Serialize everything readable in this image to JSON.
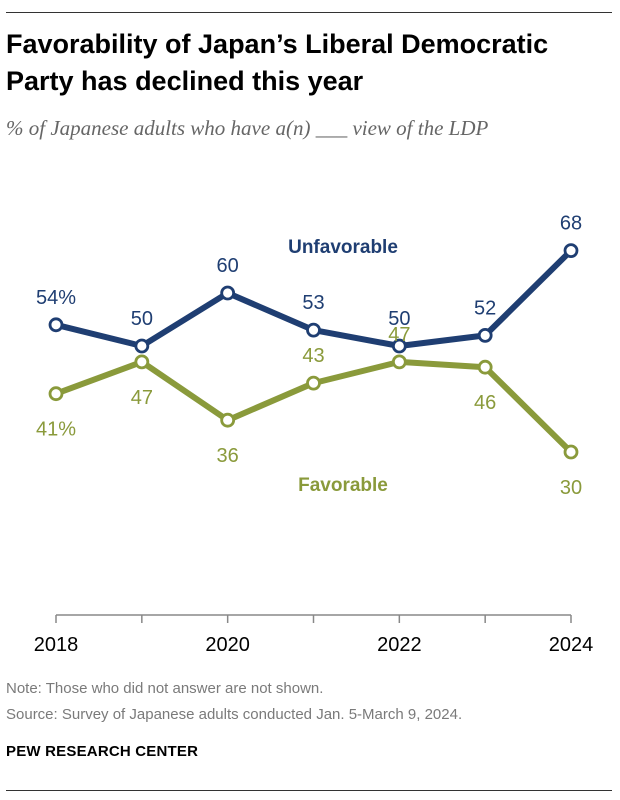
{
  "title": "Favorability of Japan’s Liberal Democratic Party has declined this year",
  "subtitle": "% of Japanese adults who have a(n) ___ view of the LDP",
  "chart_data": {
    "type": "line",
    "x": [
      2018,
      2019,
      2020,
      2021,
      2022,
      2023,
      2024
    ],
    "x_tick_labels": [
      "2018",
      "2020",
      "2022",
      "2024"
    ],
    "ylim": [
      0,
      80
    ],
    "grid": false,
    "series": [
      {
        "name": "Unfavorable",
        "color": "#1f3e72",
        "values": [
          54,
          50,
          60,
          53,
          50,
          52,
          68
        ],
        "labels": [
          "54%",
          "50",
          "60",
          "53",
          "50",
          "52",
          "68"
        ]
      },
      {
        "name": "Favorable",
        "color": "#8a9a3b",
        "values": [
          41,
          47,
          36,
          43,
          47,
          46,
          30
        ],
        "labels": [
          "41%",
          "47",
          "36",
          "43",
          "47",
          "46",
          "30"
        ]
      }
    ]
  },
  "note": "Note: Those who did not answer are not shown.",
  "source": "Source: Survey of Japanese adults conducted Jan. 5-March 9, 2024.",
  "brand": "PEW RESEARCH CENTER"
}
